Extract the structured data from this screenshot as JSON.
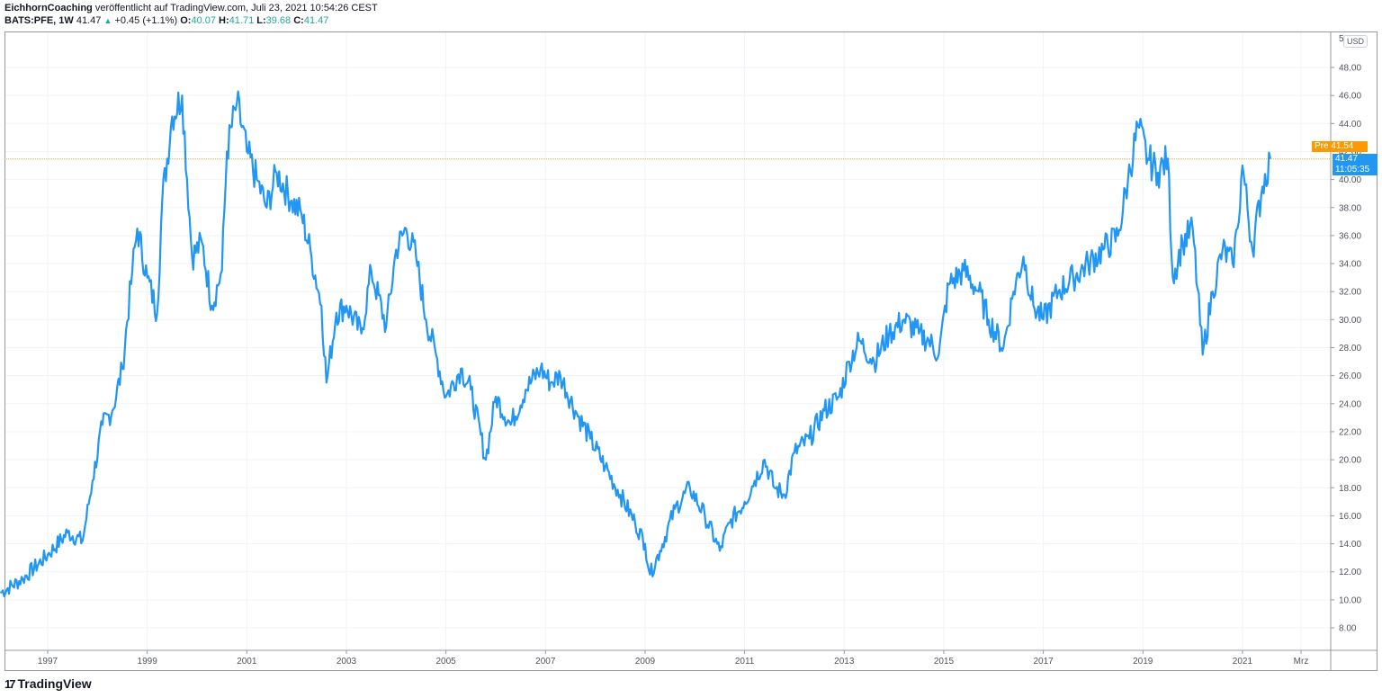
{
  "header": {
    "author": "EichhornCoaching",
    "published_text": "veröffentlicht auf TradingView.com, Juli 23, 2021 10:54:26 CEST",
    "symbol": "BATS:PFE, 1W",
    "last": "41.47",
    "up_arrow": "▲",
    "change": "+0.45 (+1.1%)",
    "o_label": "O:",
    "o": "40.07",
    "h_label": "H:",
    "h": "41.71",
    "l_label": "L:",
    "l": "39.68",
    "c_label": "C:",
    "c": "41.47"
  },
  "price_scale": {
    "currency": "USD",
    "pre_tag": "Pre  41.54",
    "last_price": "41.47",
    "countdown": "11:05:35"
  },
  "branding": {
    "logo_mark": "17",
    "name": "TradingView"
  },
  "colors": {
    "line": "#2196f3",
    "pre": "#ff9800",
    "last": "#2196f3",
    "grid": "#f0f3fa"
  },
  "chart_data": {
    "type": "line",
    "title": "BATS:PFE, 1W",
    "xlabel": "",
    "ylabel": "USD",
    "ylim": [
      6.5,
      50
    ],
    "y_ticks": [
      8,
      10,
      12,
      14,
      16,
      18,
      20,
      22,
      24,
      26,
      28,
      30,
      32,
      34,
      36,
      38,
      40,
      42,
      44,
      46,
      48
    ],
    "x_ticks": [
      "1997",
      "1999",
      "2001",
      "2003",
      "2005",
      "2007",
      "2009",
      "2011",
      "2013",
      "2015",
      "2017",
      "2019",
      "2021",
      "Mrz"
    ],
    "grid": true,
    "legend": "none",
    "series": [
      {
        "name": "PFE weekly close",
        "x": [
          1996.05,
          1996.5,
          1997.0,
          1997.4,
          1997.7,
          1997.9,
          1998.1,
          1998.3,
          1998.5,
          1998.7,
          1998.8,
          1999.0,
          1999.2,
          1999.3,
          1999.5,
          1999.7,
          1999.9,
          2000.1,
          2000.3,
          2000.5,
          2000.6,
          2000.8,
          2001.0,
          2001.2,
          2001.4,
          2001.6,
          2001.9,
          2002.1,
          2002.3,
          2002.5,
          2002.6,
          2002.8,
          2003.0,
          2003.3,
          2003.5,
          2003.8,
          2004.0,
          2004.2,
          2004.4,
          2004.6,
          2004.8,
          2005.0,
          2005.3,
          2005.5,
          2005.8,
          2006.0,
          2006.3,
          2006.6,
          2006.9,
          2007.1,
          2007.3,
          2007.6,
          2007.9,
          2008.2,
          2008.5,
          2008.8,
          2009.0,
          2009.1,
          2009.3,
          2009.6,
          2009.9,
          2010.2,
          2010.5,
          2010.7,
          2011.0,
          2011.2,
          2011.4,
          2011.6,
          2011.8,
          2012.0,
          2012.3,
          2012.6,
          2012.9,
          2013.1,
          2013.3,
          2013.6,
          2013.9,
          2014.2,
          2014.5,
          2014.7,
          2014.9,
          2015.1,
          2015.4,
          2015.7,
          2015.9,
          2016.2,
          2016.4,
          2016.6,
          2016.8,
          2017.0,
          2017.3,
          2017.6,
          2017.9,
          2018.2,
          2018.5,
          2018.7,
          2018.9,
          2019.1,
          2019.3,
          2019.5,
          2019.6,
          2019.8,
          2020.0,
          2020.2,
          2020.4,
          2020.6,
          2020.8,
          2020.9,
          2021.0,
          2021.2,
          2021.4,
          2021.56
        ],
        "values": [
          10.5,
          11.5,
          13.2,
          14.8,
          14.2,
          18.5,
          22.5,
          23.5,
          26.5,
          33.5,
          36.5,
          33.0,
          30.5,
          38.5,
          44.5,
          46.0,
          34.5,
          35.5,
          31.0,
          33.5,
          42.0,
          45.5,
          42.0,
          40.0,
          38.0,
          40.5,
          38.5,
          37.5,
          34.5,
          31.0,
          25.5,
          30.5,
          31.0,
          29.0,
          33.5,
          29.5,
          35.0,
          36.5,
          34.5,
          30.0,
          27.5,
          24.5,
          26.5,
          25.0,
          20.0,
          24.5,
          22.5,
          25.0,
          26.5,
          25.5,
          26.0,
          23.5,
          21.5,
          19.5,
          17.5,
          15.5,
          14.0,
          11.8,
          13.5,
          16.5,
          18.0,
          16.0,
          13.5,
          15.5,
          17.0,
          18.5,
          20.0,
          18.0,
          17.5,
          20.5,
          21.5,
          23.5,
          24.5,
          27.0,
          28.5,
          27.0,
          29.0,
          30.0,
          29.0,
          28.5,
          27.5,
          32.5,
          33.5,
          32.0,
          30.0,
          28.0,
          32.0,
          34.5,
          31.0,
          30.0,
          32.0,
          33.0,
          34.0,
          35.0,
          36.0,
          40.0,
          43.8,
          41.5,
          40.5,
          41.5,
          33.0,
          35.5,
          36.5,
          27.5,
          32.0,
          35.0,
          34.0,
          36.5,
          41.0,
          35.0,
          39.5,
          41.47
        ]
      }
    ],
    "last_value": 41.47,
    "pre_market_value": 41.54
  }
}
